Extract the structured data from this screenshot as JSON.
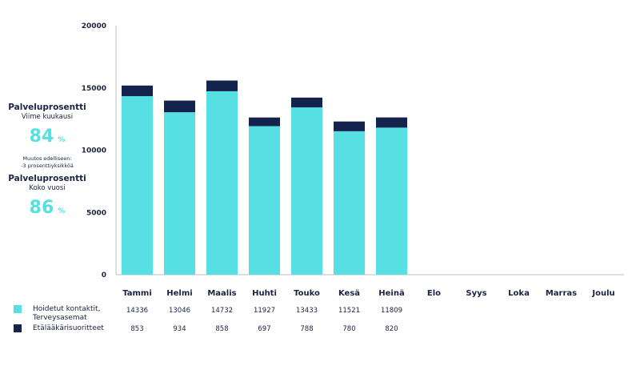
{
  "kpi": {
    "title1": "Palveluprosentti",
    "sub1": "Viime kuukausi",
    "value1": "84",
    "unit1": "%",
    "change_line1": "Muutos edelliseen:",
    "change_line2": "-3 prosenttiyksikköä",
    "title2": "Palveluprosentti",
    "sub2": "Koko vuosi",
    "value2": "86",
    "unit2": "%"
  },
  "chart_data": {
    "type": "bar",
    "stacked": true,
    "categories": [
      "Tammi",
      "Helmi",
      "Maalis",
      "Huhti",
      "Touko",
      "Kesä",
      "Heinä",
      "Elo",
      "Syys",
      "Loka",
      "Marras",
      "Joulu"
    ],
    "series": [
      {
        "name": "Hoidetut kontaktit,\nTerveysasemat",
        "color": "#56e0e3",
        "values": [
          14336,
          13046,
          14732,
          11927,
          13433,
          11521,
          11809,
          null,
          null,
          null,
          null,
          null
        ]
      },
      {
        "name": "Etälääkärisuoritteet",
        "color": "#14234b",
        "values": [
          853,
          934,
          858,
          697,
          788,
          780,
          820,
          null,
          null,
          null,
          null,
          null
        ]
      }
    ],
    "yticks": [
      0,
      5000,
      10000,
      15000,
      20000
    ],
    "ylim": [
      0,
      20000
    ],
    "grid": false,
    "legend": "bottom-left, table rows under the months"
  }
}
